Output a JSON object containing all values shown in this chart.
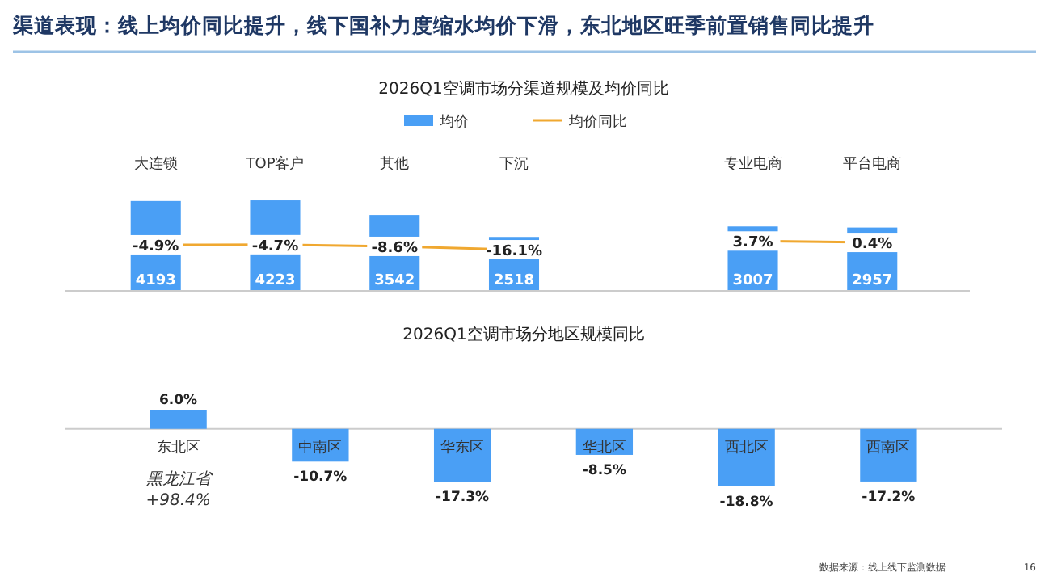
{
  "chart_data": [
    {
      "type": "bar",
      "title": "渠道表现：线上均价同比提升，线下国补力度缩水均价下滑，东北地区旺季前置销售同比提升",
      "subtitle": "2026Q1空调市场分渠道规模及均价同比",
      "categories": [
        "大连锁",
        "TOP客户",
        "其他",
        "下沉",
        null,
        "专业电商",
        "平台电商"
      ],
      "ylim": [
        0,
        4300
      ],
      "y2lim": [
        -110,
        100
      ],
      "legend": "top",
      "series": [
        {
          "name": "均价",
          "color": "#4a9ff5",
          "values": [
            4193,
            4223,
            3542,
            2518,
            null,
            3007,
            2957
          ],
          "value_labels": [
            "4193",
            "4223",
            "3542",
            "2518",
            null,
            "3007",
            "2957"
          ]
        },
        {
          "name": "均价同比",
          "type": "line",
          "axis": "y2",
          "marker": "square",
          "color": "#f0a830",
          "values": [
            -4.9,
            -4.7,
            -8.6,
            -16.1,
            null,
            3.7,
            0.4
          ],
          "value_labels": [
            "-4.9%",
            "-4.7%",
            "-8.6%",
            "-16.1%",
            null,
            "3.7%",
            "0.4%"
          ]
        }
      ]
    },
    {
      "type": "bar",
      "title": "2026Q1空调市场分地区规模同比",
      "categories": [
        "东北区",
        "中南区",
        "华东区",
        "华北区",
        "西北区",
        "西南区"
      ],
      "color": "#4a9ff5",
      "values": [
        6.0,
        -10.7,
        -17.3,
        -8.5,
        -18.8,
        -17.2
      ],
      "value_labels": [
        "6.0%",
        "-10.7%",
        "-17.3%",
        "-8.5%",
        "-18.8%",
        "-17.2%"
      ],
      "annotations": [
        "黑龙江省\n+98.4%",
        "数据来源：线上线下监测数据",
        "16"
      ]
    }
  ]
}
